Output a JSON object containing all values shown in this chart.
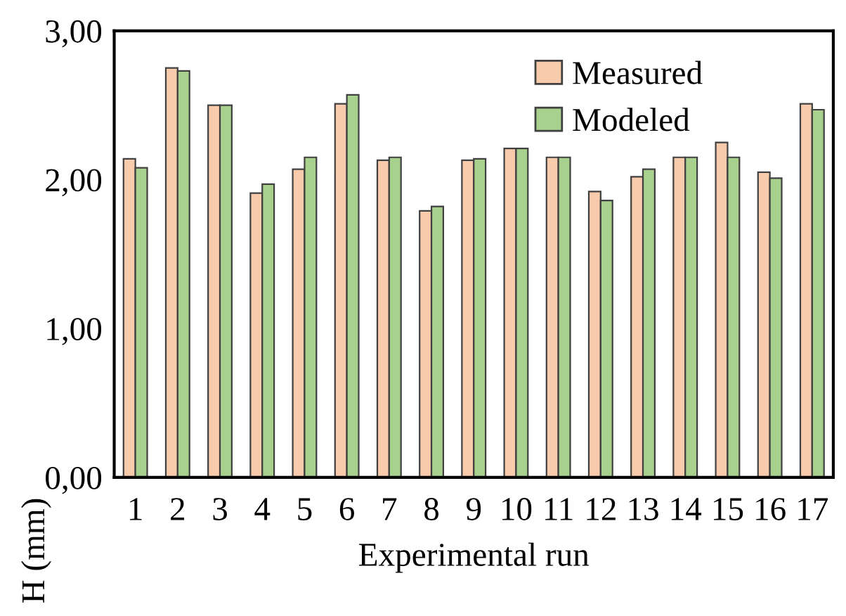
{
  "chart_data": {
    "type": "bar",
    "xlabel": "Experimental run",
    "ylabel": "H (mm)",
    "categories": [
      "1",
      "2",
      "3",
      "4",
      "5",
      "6",
      "7",
      "8",
      "9",
      "10",
      "11",
      "12",
      "13",
      "14",
      "15",
      "16",
      "17"
    ],
    "series": [
      {
        "name": "Measured",
        "color": "#f8cbad",
        "values": [
          2.14,
          2.75,
          2.5,
          1.91,
          2.07,
          2.51,
          2.13,
          1.79,
          2.13,
          2.21,
          2.15,
          1.92,
          2.02,
          2.15,
          2.25,
          2.05,
          2.51
        ]
      },
      {
        "name": "Modeled",
        "color": "#a9d18e",
        "values": [
          2.08,
          2.73,
          2.5,
          1.97,
          2.15,
          2.57,
          2.15,
          1.82,
          2.14,
          2.21,
          2.15,
          1.86,
          2.07,
          2.15,
          2.15,
          2.01,
          2.47
        ]
      }
    ],
    "ylim": [
      0,
      3
    ],
    "yticks": [
      {
        "value": 0,
        "label": "0,00"
      },
      {
        "value": 1,
        "label": "1,00"
      },
      {
        "value": 2,
        "label": "2,00"
      },
      {
        "value": 3,
        "label": "3,00"
      }
    ],
    "legend": "top right",
    "grid": false
  }
}
